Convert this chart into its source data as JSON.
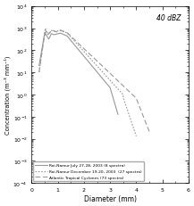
{
  "title": "40 dBZ",
  "xlabel": "Diameter (mm)",
  "ylabel": "Concentration (m⁻³ mm⁻¹)",
  "xlim": [
    0,
    6
  ],
  "ylim": [
    0.0001,
    10000.0
  ],
  "line_color": "#999999",
  "legend": [
    {
      "label": "Roi-Namur July 27-28, 2003 (8 spectra)",
      "linestyle": "solid"
    },
    {
      "label": "Roi-Namur December 19-20, 2003  (27 spectra)",
      "linestyle": "dotted"
    },
    {
      "label": "Atlantic Tropical Cyclones (73 spectra)",
      "linestyle": "dashed"
    }
  ],
  "background_color": "#ffffff",
  "figsize": [
    2.17,
    2.32
  ],
  "dpi": 100
}
